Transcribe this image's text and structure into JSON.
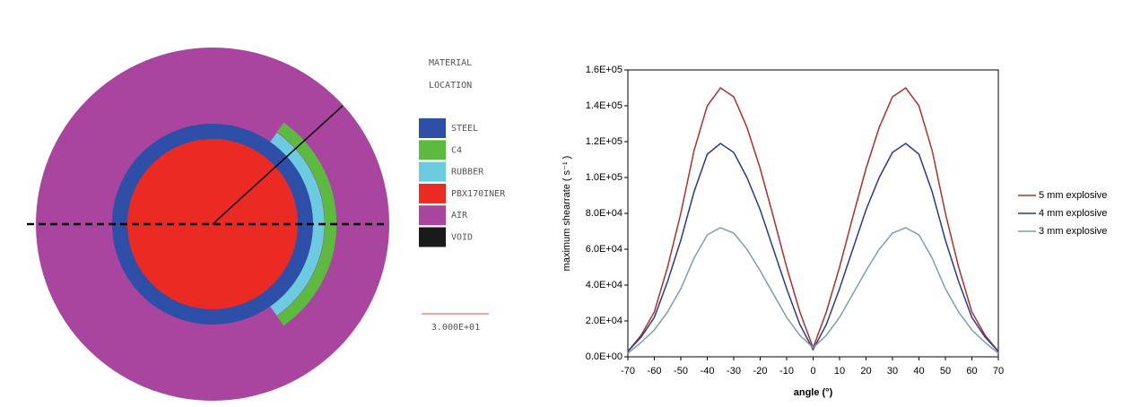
{
  "chart_data": {
    "type": "line",
    "x_label": "angle (°)",
    "y_label": "maximum shearrate ( s⁻¹ )",
    "x": [
      -70,
      -65,
      -60,
      -55,
      -50,
      -45,
      -40,
      -35,
      -30,
      -25,
      -20,
      -15,
      -10,
      -5,
      0,
      5,
      10,
      15,
      20,
      25,
      30,
      35,
      40,
      45,
      50,
      55,
      60,
      65,
      70
    ],
    "series": [
      {
        "name": "5 mm explosive",
        "color": "#b0302a",
        "values": [
          3000,
          12000,
          25000,
          50000,
          80000,
          115000,
          140000,
          150000,
          145000,
          128000,
          105000,
          78000,
          50000,
          25000,
          5000,
          25000,
          50000,
          78000,
          105000,
          128000,
          145000,
          150000,
          140000,
          115000,
          80000,
          50000,
          25000,
          12000,
          3000
        ]
      },
      {
        "name": "4 mm explosive",
        "color": "#2a3a8c",
        "values": [
          3000,
          11000,
          22000,
          42000,
          65000,
          92000,
          113000,
          119000,
          114000,
          100000,
          82000,
          60000,
          38000,
          18000,
          4000,
          18000,
          38000,
          60000,
          82000,
          100000,
          114000,
          119000,
          113000,
          92000,
          65000,
          42000,
          22000,
          11000,
          3000
        ]
      },
      {
        "name": "3 mm explosive",
        "color": "#7f9fa8",
        "values": [
          2000,
          8000,
          15000,
          25000,
          38000,
          55000,
          68000,
          72000,
          69000,
          60000,
          48000,
          35000,
          22000,
          12000,
          5000,
          12000,
          22000,
          35000,
          48000,
          60000,
          69000,
          72000,
          68000,
          55000,
          38000,
          25000,
          15000,
          8000,
          2000
        ]
      }
    ],
    "xlim": [
      -70,
      70
    ],
    "xticks": [
      -70,
      -60,
      -50,
      -40,
      -30,
      -20,
      -10,
      0,
      10,
      20,
      30,
      40,
      50,
      60,
      70
    ],
    "ylim": [
      0,
      160000
    ],
    "yticks": [
      {
        "value": 0,
        "label": "0.0E+00"
      },
      {
        "value": 20000,
        "label": "2.0E+04"
      },
      {
        "value": 40000,
        "label": "4.0E+04"
      },
      {
        "value": 60000,
        "label": "6.0E+04"
      },
      {
        "value": 80000,
        "label": "8.0E+04"
      },
      {
        "value": 100000,
        "label": "1.0E+05"
      },
      {
        "value": 120000,
        "label": "1.2E+05"
      },
      {
        "value": 140000,
        "label": "1.4E+05"
      },
      {
        "value": 160000,
        "label": "1.6E+05"
      }
    ],
    "grid": false
  },
  "material_diagram": {
    "title_lines": [
      "MATERIAL",
      "LOCATION"
    ],
    "legend": [
      {
        "label": "STEEL",
        "color": "#2e4fa8"
      },
      {
        "label": "C4",
        "color": "#5cbb3e"
      },
      {
        "label": "RUBBER",
        "color": "#6ccbe0"
      },
      {
        "label": "PBX170INER",
        "color": "#ec2a24"
      },
      {
        "label": "AIR",
        "color": "#a9449f"
      },
      {
        "label": "VOID",
        "color": "#1a1a1a"
      }
    ],
    "scale_label": "3.000E+01"
  }
}
